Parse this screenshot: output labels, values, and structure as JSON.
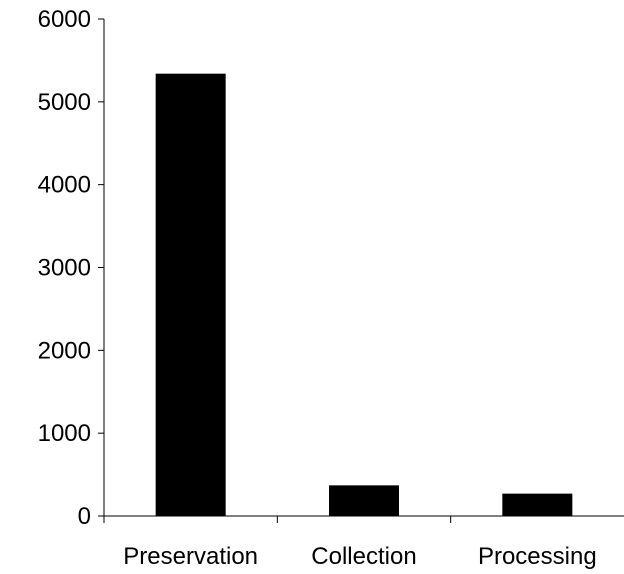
{
  "chart_data": {
    "type": "bar",
    "categories": [
      "Preservation",
      "Collection",
      "Processing"
    ],
    "values": [
      5340,
      370,
      270
    ],
    "title": "",
    "xlabel": "",
    "ylabel": "",
    "ylim": [
      0,
      6000
    ],
    "yticks": [
      0,
      1000,
      2000,
      3000,
      4000,
      5000,
      6000
    ],
    "grid": false,
    "legend": "none",
    "colors": {
      "bar": "#000000",
      "axis": "#000000"
    }
  }
}
